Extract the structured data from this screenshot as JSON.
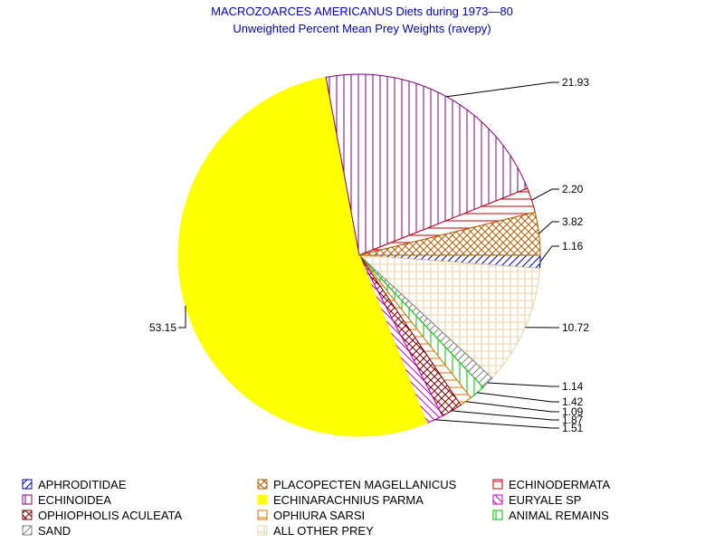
{
  "chart_data": {
    "type": "pie",
    "title": "MACROZOARCES AMERICANUS Diets during 1973—80",
    "subtitle": "Unweighted Percent Mean Prey Weights (ravepy)",
    "legend_position": "bottom",
    "slices": [
      {
        "name": "APHRODITIDAE",
        "value": 1.16,
        "label": "1.16",
        "color": "#0000c0",
        "pattern": "diag-right"
      },
      {
        "name": "ALL OTHER PREY",
        "value": 10.72,
        "label": "10.72",
        "color": "#e8d2a0",
        "pattern": "grid"
      },
      {
        "name": "SAND",
        "value": 1.14,
        "label": "1.14",
        "color": "#808080",
        "pattern": "diag-right"
      },
      {
        "name": "ANIMAL REMAINS",
        "value": 1.42,
        "label": "1.42",
        "color": "#00c000",
        "pattern": "vertical"
      },
      {
        "name": "OPHIURA SARSI",
        "value": 1.09,
        "label": "1.09",
        "color": "#e07000",
        "pattern": "horizontal"
      },
      {
        "name": "OPHIOPHOLIS ACULEATA",
        "value": 1.87,
        "label": "1.87",
        "color": "#800000",
        "pattern": "cross"
      },
      {
        "name": "EURYALE SP",
        "value": 1.51,
        "label": "1.51",
        "color": "#c000c0",
        "pattern": "diag-left"
      },
      {
        "name": "ECHINARACHNIUS PARMA",
        "value": 53.15,
        "label": "53.15",
        "color": "#ffff00",
        "pattern": "solid"
      },
      {
        "name": "ECHINOIDEA",
        "value": 21.93,
        "label": "21.93",
        "color": "#800080",
        "pattern": "vertical"
      },
      {
        "name": "ECHINODERMATA",
        "value": 2.2,
        "label": "2.20",
        "color": "#c00000",
        "pattern": "horizontal"
      },
      {
        "name": "PLACOPECTEN MAGELLANICUS",
        "value": 3.82,
        "label": "3.82",
        "color": "#b06000",
        "pattern": "cross"
      }
    ],
    "legend": [
      {
        "name": "APHRODITIDAE",
        "color": "#0000c0",
        "pattern": "diag-right"
      },
      {
        "name": "PLACOPECTEN MAGELLANICUS",
        "color": "#b06000",
        "pattern": "cross"
      },
      {
        "name": "ECHINODERMATA",
        "color": "#c00000",
        "pattern": "horizontal"
      },
      {
        "name": "ECHINOIDEA",
        "color": "#800080",
        "pattern": "vertical"
      },
      {
        "name": "ECHINARACHNIUS PARMA",
        "color": "#ffff00",
        "pattern": "solid"
      },
      {
        "name": "EURYALE SP",
        "color": "#c000c0",
        "pattern": "diag-left"
      },
      {
        "name": "OPHIOPHOLIS ACULEATA",
        "color": "#800000",
        "pattern": "cross"
      },
      {
        "name": "OPHIURA SARSI",
        "color": "#e07000",
        "pattern": "horizontal"
      },
      {
        "name": "ANIMAL REMAINS",
        "color": "#00c000",
        "pattern": "vertical"
      },
      {
        "name": "SAND",
        "color": "#808080",
        "pattern": "diag-right"
      },
      {
        "name": "ALL OTHER PREY",
        "color": "#e8d2a0",
        "pattern": "grid"
      }
    ]
  }
}
